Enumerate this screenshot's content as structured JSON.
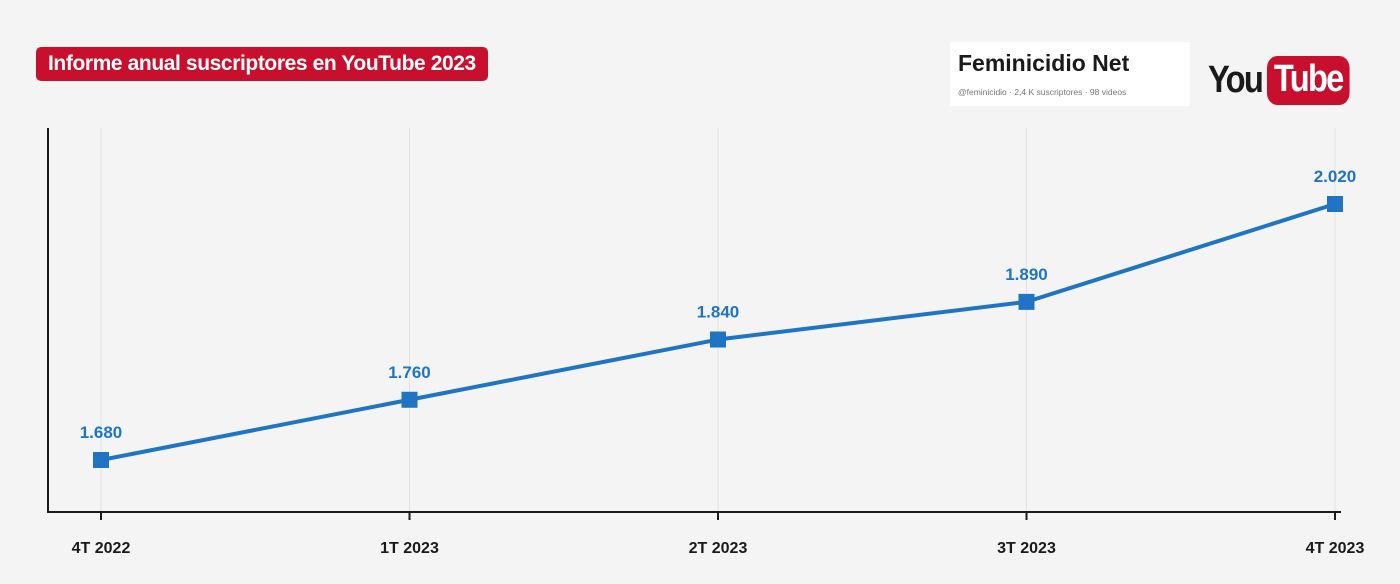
{
  "header": {
    "title": "Informe anual suscriptores en YouTube 2023"
  },
  "channel": {
    "name": "Feminicidio Net",
    "meta": "@feminicidio · 2,4 K suscriptores · 98 videos"
  },
  "logo": {
    "you": "You",
    "tube": "Tube"
  },
  "colors": {
    "brand_red": "#c8102e",
    "series_blue": "#1f74c4",
    "axis": "#1a1a1a",
    "gridline": "#e2e2e2"
  },
  "chart_data": {
    "type": "line",
    "title": "Informe anual suscriptores en YouTube 2023",
    "xlabel": "",
    "ylabel": "",
    "categories": [
      "4T 2022",
      "1T 2023",
      "2T 2023",
      "3T 2023",
      "4T 2023"
    ],
    "series": [
      {
        "values": [
          1680,
          1760,
          1840,
          1890,
          2020
        ],
        "labels": [
          "1.680",
          "1.760",
          "1.840",
          "1.890",
          "2.020"
        ],
        "color": "#1f74c4",
        "marker": "square"
      }
    ],
    "ylim": [
      1600,
      2100
    ],
    "grid": "vertical",
    "legend": "none"
  }
}
